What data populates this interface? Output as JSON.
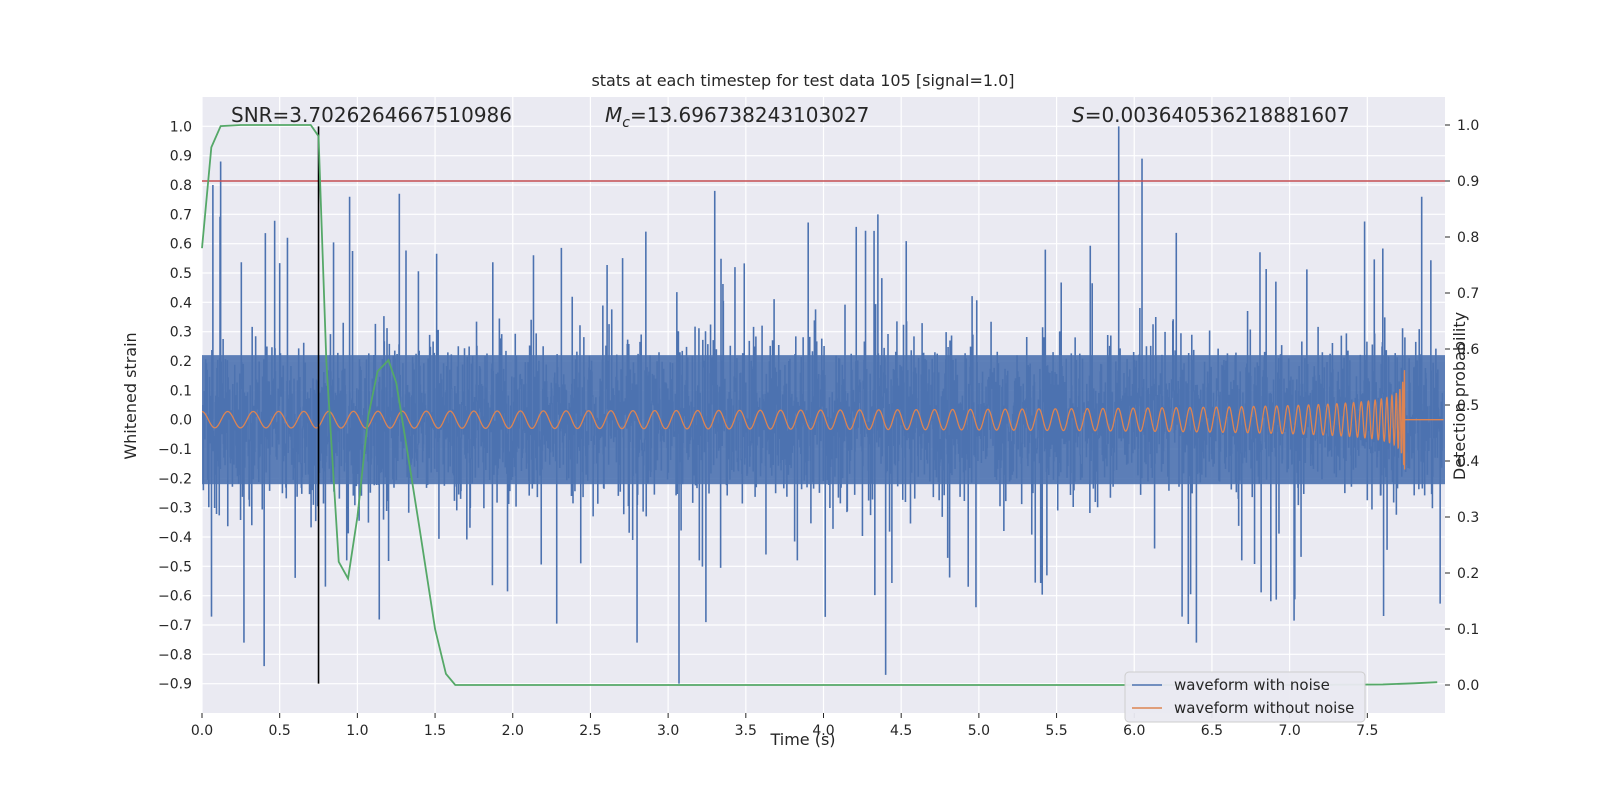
{
  "chart_data": {
    "type": "line",
    "title": "stats at each timestep for test data 105 [signal=1.0]",
    "xlabel": "Time (s)",
    "ylabel_left": "Whitened strain",
    "ylabel_right": "Detection probability",
    "xlim": [
      0.0,
      8.0
    ],
    "ylim_left": [
      -1.0,
      1.1
    ],
    "ylim_right": [
      -0.05,
      1.05
    ],
    "xticks": [
      0.0,
      0.5,
      1.0,
      1.5,
      2.0,
      2.5,
      3.0,
      3.5,
      4.0,
      4.5,
      5.0,
      5.5,
      6.0,
      6.5,
      7.0,
      7.5
    ],
    "xtick_labels": [
      "0.0",
      "0.5",
      "1.0",
      "1.5",
      "2.0",
      "2.5",
      "3.0",
      "3.5",
      "4.0",
      "4.5",
      "5.0",
      "5.5",
      "6.0",
      "6.5",
      "7.0",
      "7.5"
    ],
    "yticks_left": [
      -0.9,
      -0.8,
      -0.7,
      -0.6,
      -0.5,
      -0.4,
      -0.3,
      -0.2,
      -0.1,
      0.0,
      0.1,
      0.2,
      0.3,
      0.4,
      0.5,
      0.6,
      0.7,
      0.8,
      0.9,
      1.0
    ],
    "ytick_labels_left": [
      "−0.9",
      "−0.8",
      "−0.7",
      "−0.6",
      "−0.5",
      "−0.4",
      "−0.3",
      "−0.2",
      "−0.1",
      "0.0",
      "0.1",
      "0.2",
      "0.3",
      "0.4",
      "0.5",
      "0.6",
      "0.7",
      "0.8",
      "0.9",
      "1.0"
    ],
    "yticks_right": [
      0.0,
      0.1,
      0.2,
      0.3,
      0.4,
      0.5,
      0.6,
      0.7,
      0.8,
      0.9,
      1.0
    ],
    "ytick_labels_right": [
      "0.0",
      "0.1",
      "0.2",
      "0.3",
      "0.4",
      "0.5",
      "0.6",
      "0.7",
      "0.8",
      "0.9",
      "1.0"
    ],
    "annotations": {
      "snr": "SNR=3.7026264667510986",
      "mc_symbol": "M",
      "mc_sub": "c",
      "mc_value": "=13.696738243103027",
      "s_symbol": "S",
      "s_value": "=0.003640536218881607"
    },
    "grid": true,
    "legend_position": "bottom-right",
    "colors": {
      "noisy": "#4c72b0",
      "clean": "#dd8452",
      "probability": "#55a868",
      "threshold": "#c44e52",
      "marker": "#000000",
      "axes_bg": "#eaeaf2"
    },
    "series": [
      {
        "name": "waveform with noise",
        "axis": "left",
        "description": "dense noisy strain, envelope roughly ±0.6",
        "spikes": [
          {
            "x": 0.12,
            "y": 0.88
          },
          {
            "x": 0.07,
            "y": 0.8
          },
          {
            "x": 0.55,
            "y": 0.62
          },
          {
            "x": 0.95,
            "y": 0.76
          },
          {
            "x": 1.27,
            "y": 0.77
          },
          {
            "x": 3.3,
            "y": 0.78
          },
          {
            "x": 4.35,
            "y": 0.7
          },
          {
            "x": 5.9,
            "y": 1.0
          },
          {
            "x": 6.05,
            "y": 0.89
          },
          {
            "x": 7.85,
            "y": 0.76
          },
          {
            "x": 0.4,
            "y": -0.84
          },
          {
            "x": 3.07,
            "y": -0.9
          },
          {
            "x": 4.4,
            "y": -0.87
          },
          {
            "x": 6.4,
            "y": -0.76
          },
          {
            "x": 2.8,
            "y": -0.76
          },
          {
            "x": 0.27,
            "y": -0.76
          }
        ]
      },
      {
        "name": "waveform without noise",
        "axis": "left",
        "description": "chirp growing in amplitude, merger at t≈7.74 s with amplitude ≈0.17",
        "merger_time": 7.74,
        "peak_amplitude": 0.17
      },
      {
        "name": "detection probability",
        "axis": "right",
        "x": [
          0.0,
          0.06,
          0.12,
          0.25,
          0.5,
          0.7,
          0.75,
          0.8,
          0.88,
          0.94,
          1.0,
          1.07,
          1.13,
          1.2,
          1.25,
          1.32,
          1.4,
          1.5,
          1.57,
          1.63,
          2.0,
          3.0,
          4.0,
          5.0,
          6.0,
          7.0,
          7.6,
          7.8,
          7.95
        ],
        "y": [
          0.78,
          0.96,
          0.998,
          1.0,
          1.0,
          1.0,
          0.98,
          0.58,
          0.22,
          0.19,
          0.3,
          0.48,
          0.56,
          0.58,
          0.54,
          0.42,
          0.28,
          0.1,
          0.02,
          0.0,
          0.0,
          0.0,
          0.0,
          0.0,
          0.0,
          0.0,
          0.001,
          0.003,
          0.005
        ]
      }
    ],
    "threshold_probability": 0.9,
    "marker_time": 0.75,
    "legend": [
      "waveform with noise",
      "waveform without noise"
    ]
  }
}
